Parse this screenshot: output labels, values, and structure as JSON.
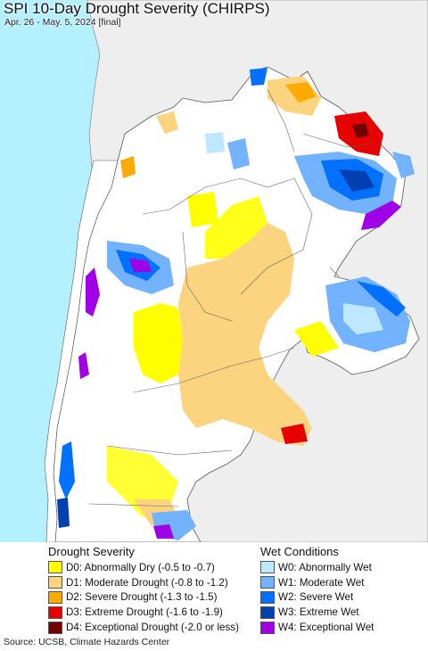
{
  "header": {
    "title": "SPI 10-Day Drought Severity (CHIRPS)",
    "subtitle": "Apr. 26 - May. 5, 2024 [final]"
  },
  "colors": {
    "ocean": "#b4f0ff",
    "land_outside": "#eeeeee",
    "land_region": "#ffffff",
    "borders": "#555555"
  },
  "legend": {
    "drought": {
      "heading": "Drought Severity",
      "items": [
        {
          "label": "D0: Abnormally Dry (-0.5 to -0.7)",
          "color": "#ffff00"
        },
        {
          "label": "D1: Moderate Drought (-0.8 to -1.2)",
          "color": "#fcd37f"
        },
        {
          "label": "D2: Severe Drought (-1.3 to -1.5)",
          "color": "#ffaa00"
        },
        {
          "label": "D3: Extreme Drought (-1.6 to -1.9)",
          "color": "#e60000"
        },
        {
          "label": "D4: Exceptional Drought (-2.0 or less)",
          "color": "#730000"
        }
      ]
    },
    "wet": {
      "heading": "Wet Conditions",
      "items": [
        {
          "label": "W0: Abnormally Wet",
          "color": "#bee8ff"
        },
        {
          "label": "W1: Moderate Wet",
          "color": "#73b2ff"
        },
        {
          "label": "W2: Severe Wet",
          "color": "#0070ff"
        },
        {
          "label": "W3: Extreme Wet",
          "color": "#0040b0"
        },
        {
          "label": "W4: Exceptional Wet",
          "color": "#a000e6"
        }
      ]
    }
  },
  "footer": {
    "source": "Source: UCSB, Climate Hazards Center"
  }
}
